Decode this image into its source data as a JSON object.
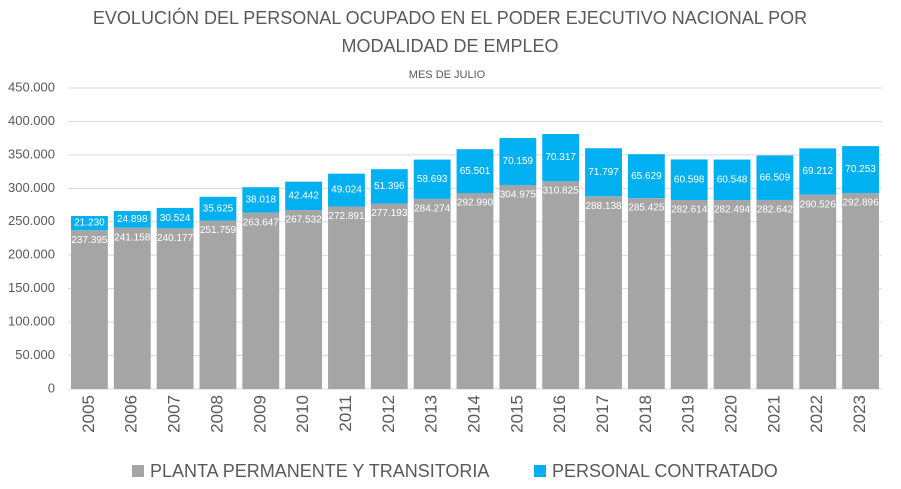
{
  "chart_data": {
    "type": "stacked_bar",
    "title": "EVOLUCIÓN DEL PERSONAL OCUPADO EN EL PODER EJECUTIVO NACIONAL POR MODALIDAD DE EMPLEO",
    "subtitle": "MES DE JULIO",
    "categories": [
      "2005",
      "2006",
      "2007",
      "2008",
      "2009",
      "2010",
      "2011",
      "2012",
      "2013",
      "2014",
      "2015",
      "2016",
      "2017",
      "2018",
      "2019",
      "2020",
      "2021",
      "2022",
      "2023"
    ],
    "series": [
      {
        "name": "PLANTA PERMANENTE Y TRANSITORIA",
        "color": "#a5a5a5",
        "values": [
          237395,
          241158,
          240177,
          251759,
          263647,
          267532,
          272891,
          277193,
          284274,
          292990,
          304975,
          310825,
          288138,
          285425,
          282614,
          282494,
          282642,
          290526,
          292896
        ],
        "value_labels": [
          "237.395",
          "241.158",
          "240.177",
          "251.759",
          "263.647",
          "267.532",
          "272.891",
          "277.193",
          "284.274",
          "292.990",
          "304.975",
          "310.825",
          "288.138",
          "285.425",
          "282.614",
          "282.494",
          "282.642",
          "290.526",
          "292.896"
        ]
      },
      {
        "name": "PERSONAL CONTRATADO",
        "color": "#00b0f0",
        "values": [
          21230,
          24898,
          30524,
          35625,
          38018,
          42442,
          49024,
          51396,
          58693,
          65501,
          70159,
          70317,
          71797,
          65629,
          60598,
          60548,
          66509,
          69212,
          70253
        ],
        "value_labels": [
          "21.230",
          "24.898",
          "30.524",
          "35.625",
          "38.018",
          "42.442",
          "49.024",
          "51.396",
          "58.693",
          "65.501",
          "70.159",
          "70.317",
          "71.797",
          "65.629",
          "60.598",
          "60.548",
          "66.509",
          "69.212",
          "70.253"
        ]
      }
    ],
    "ylim": [
      0,
      450000
    ],
    "yticks": [
      0,
      {
        "value": 50000,
        "label": "50.000"
      },
      {
        "value": 100000,
        "label": "100.000"
      },
      {
        "value": 150000,
        "label": "150.000"
      },
      {
        "value": 200000,
        "label": "200.000"
      },
      {
        "value": 250000,
        "label": "250.000"
      },
      {
        "value": 300000,
        "label": "300.000"
      },
      {
        "value": 350000,
        "label": "350.000"
      },
      {
        "value": 400000,
        "label": "400.000"
      },
      {
        "value": 450000,
        "label": "450.000"
      }
    ],
    "grid": true,
    "legend": "bottom"
  }
}
